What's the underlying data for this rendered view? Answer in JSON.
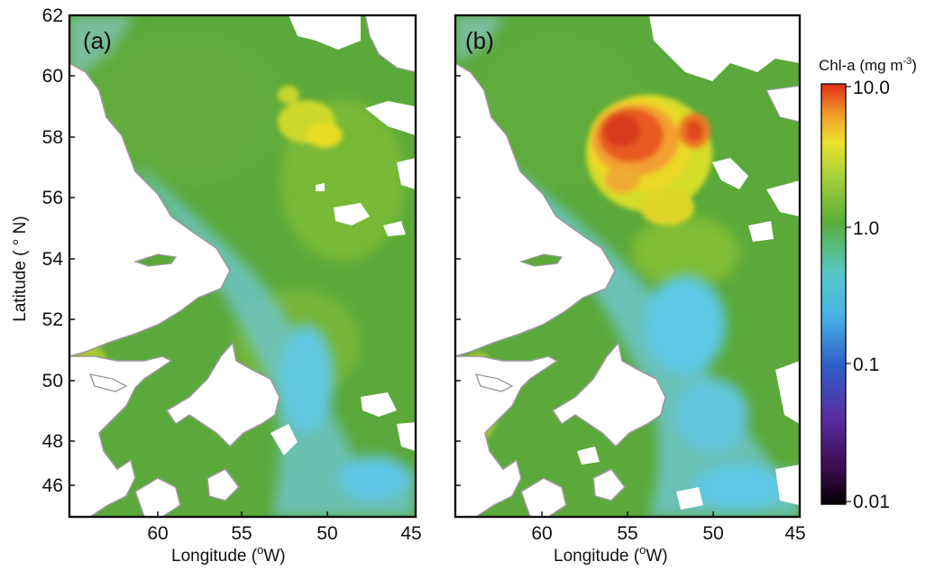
{
  "y_axis": {
    "label": "Latitude ( ° N)",
    "ticks": [
      "62",
      "60",
      "58",
      "56",
      "54",
      "52",
      "50",
      "48",
      "46"
    ]
  },
  "x_axis": {
    "label_main": "Longitude (",
    "label_sup": "o",
    "label_tail": "W)",
    "ticks": [
      "60",
      "55",
      "50",
      "45"
    ]
  },
  "panels": [
    {
      "label": "(a)"
    },
    {
      "label": "(b)"
    }
  ],
  "colorbar": {
    "title_main": "Chl-a (mg m",
    "title_sup": "-3",
    "title_tail": ")",
    "scale": "log",
    "ticks": [
      "10.0",
      "1.0",
      "0.1",
      "0.01"
    ],
    "range": [
      0.01,
      10.0
    ]
  },
  "colors": {
    "ocean_green": "#5aa93a",
    "ocean_cyan": "#5cc8e6",
    "bloom_yellow": "#e8df2a",
    "bloom_orange": "#f2a93a",
    "bloom_red": "#e23a1e",
    "coast": "#9a9a9a",
    "land": "#ffffff"
  }
}
